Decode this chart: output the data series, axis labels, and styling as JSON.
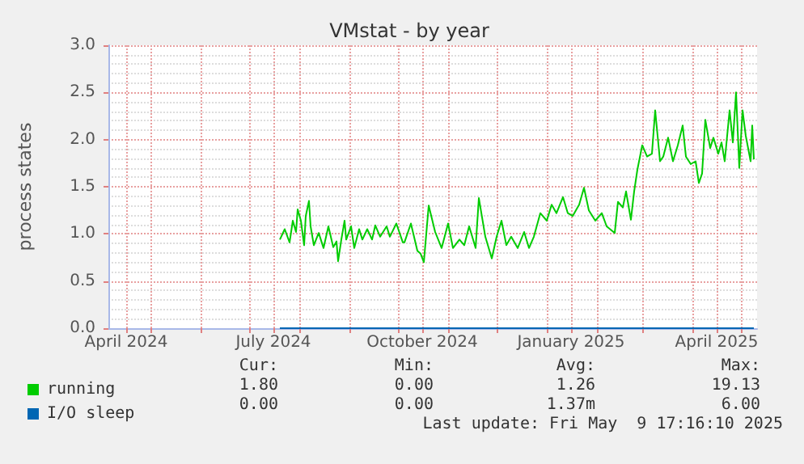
{
  "chart_data": {
    "type": "line",
    "title": "VMstat - by year",
    "ylabel": "process states",
    "xlim": [
      "2024-04-05",
      "2025-05-11"
    ],
    "xticks": [
      {
        "value": "2024-04-16",
        "label": "April 2024"
      },
      {
        "value": "2024-05-01",
        "label": null
      },
      {
        "value": "2024-06-01",
        "label": null
      },
      {
        "value": "2024-07-01",
        "label": null
      },
      {
        "value": "2024-07-16",
        "label": "July 2024"
      },
      {
        "value": "2024-08-01",
        "label": null
      },
      {
        "value": "2024-09-01",
        "label": null
      },
      {
        "value": "2024-10-01",
        "label": null
      },
      {
        "value": "2024-10-16",
        "label": "October 2024"
      },
      {
        "value": "2024-11-01",
        "label": null
      },
      {
        "value": "2024-12-01",
        "label": null
      },
      {
        "value": "2025-01-01",
        "label": null
      },
      {
        "value": "2025-01-16",
        "label": "January 2025"
      },
      {
        "value": "2025-02-01",
        "label": null
      },
      {
        "value": "2025-03-01",
        "label": null
      },
      {
        "value": "2025-04-01",
        "label": null
      },
      {
        "value": "2025-04-16",
        "label": "April 2025"
      },
      {
        "value": "2025-05-01",
        "label": null
      }
    ],
    "ylim": [
      0,
      3
    ],
    "yticks": [
      {
        "value": 0,
        "label": "0.0"
      },
      {
        "value": 0.5,
        "label": "0.5"
      },
      {
        "value": 1,
        "label": "1.0"
      },
      {
        "value": 1.5,
        "label": "1.5"
      },
      {
        "value": 2,
        "label": "2.0"
      },
      {
        "value": 2.5,
        "label": "2.5"
      },
      {
        "value": 3,
        "label": "3.0"
      }
    ],
    "grid": true,
    "legend": "bottom left",
    "marker": "none",
    "line_style": "solid",
    "series": [
      {
        "name": "running",
        "color": "#00cc00",
        "x": [
          "2024-07-20",
          "2024-07-23",
          "2024-07-26",
          "2024-07-28",
          "2024-07-30",
          "2024-07-31",
          "2024-08-02",
          "2024-08-04",
          "2024-08-05",
          "2024-08-07",
          "2024-08-08",
          "2024-08-10",
          "2024-08-13",
          "2024-08-16",
          "2024-08-19",
          "2024-08-22",
          "2024-08-24",
          "2024-08-25",
          "2024-08-27",
          "2024-08-29",
          "2024-08-30",
          "2024-09-02",
          "2024-09-04",
          "2024-09-07",
          "2024-09-09",
          "2024-09-12",
          "2024-09-15",
          "2024-09-17",
          "2024-09-20",
          "2024-09-24",
          "2024-09-26",
          "2024-09-30",
          "2024-10-04",
          "2024-10-05",
          "2024-10-09",
          "2024-10-13",
          "2024-10-15",
          "2024-10-17",
          "2024-10-20",
          "2024-10-24",
          "2024-10-28",
          "2024-11-01",
          "2024-11-04",
          "2024-11-08",
          "2024-11-11",
          "2024-11-14",
          "2024-11-18",
          "2024-11-20",
          "2024-11-24",
          "2024-11-28",
          "2024-12-01",
          "2024-12-04",
          "2024-12-07",
          "2024-12-10",
          "2024-12-14",
          "2024-12-18",
          "2024-12-21",
          "2024-12-24",
          "2024-12-28",
          "2025-01-01",
          "2025-01-04",
          "2025-01-07",
          "2025-01-11",
          "2025-01-14",
          "2025-01-17",
          "2025-01-21",
          "2025-01-24",
          "2025-01-27",
          "2025-01-31",
          "2025-02-04",
          "2025-02-07",
          "2025-02-12",
          "2025-02-14",
          "2025-02-17",
          "2025-02-19",
          "2025-02-22",
          "2025-02-24",
          "2025-02-26",
          "2025-03-01",
          "2025-03-04",
          "2025-03-07",
          "2025-03-09",
          "2025-03-12",
          "2025-03-14",
          "2025-03-17",
          "2025-03-20",
          "2025-03-23",
          "2025-03-26",
          "2025-03-28",
          "2025-03-31",
          "2025-04-03",
          "2025-04-05",
          "2025-04-07",
          "2025-04-09",
          "2025-04-12",
          "2025-04-14",
          "2025-04-17",
          "2025-04-19",
          "2025-04-21",
          "2025-04-24",
          "2025-04-26",
          "2025-04-28",
          "2025-04-30",
          "2025-05-02",
          "2025-05-04",
          "2025-05-07",
          "2025-05-08",
          "2025-05-09"
        ],
        "values": [
          0.94,
          1.05,
          0.91,
          1.14,
          1.02,
          1.26,
          1.14,
          0.88,
          1.19,
          1.35,
          1.08,
          0.88,
          1.01,
          0.85,
          1.08,
          0.86,
          0.92,
          0.71,
          0.94,
          1.14,
          0.94,
          1.08,
          0.85,
          1.05,
          0.94,
          1.05,
          0.94,
          1.09,
          0.97,
          1.08,
          0.97,
          1.11,
          0.91,
          0.91,
          1.11,
          0.82,
          0.79,
          0.7,
          1.3,
          1.02,
          0.85,
          1.11,
          0.85,
          0.94,
          0.88,
          1.08,
          0.85,
          1.38,
          0.97,
          0.74,
          0.97,
          1.14,
          0.88,
          0.97,
          0.85,
          1.02,
          0.85,
          0.97,
          1.22,
          1.14,
          1.31,
          1.22,
          1.39,
          1.22,
          1.19,
          1.31,
          1.49,
          1.25,
          1.14,
          1.22,
          1.08,
          1.01,
          1.34,
          1.28,
          1.45,
          1.15,
          1.45,
          1.68,
          1.94,
          1.82,
          1.85,
          2.31,
          1.77,
          1.82,
          2.02,
          1.77,
          1.94,
          2.15,
          1.82,
          1.74,
          1.77,
          1.54,
          1.64,
          2.21,
          1.91,
          2.02,
          1.85,
          1.97,
          1.77,
          2.31,
          1.97,
          2.5,
          1.7,
          2.31,
          2.04,
          1.77,
          2.15,
          1.79
        ]
      },
      {
        "name": "I/O sleep",
        "color": "#0066b3",
        "x": [
          "2024-07-20",
          "2025-05-09"
        ],
        "values": [
          0,
          0
        ]
      }
    ],
    "annotations": [
      "Cur:",
      "Min:",
      "Avg:",
      "Max:",
      "1.80",
      "0.00",
      "1.26",
      "19.13",
      "0.00",
      "0.00",
      "1.37m",
      "6.00",
      "Last update: Fri May  9 17:16:10 2025"
    ]
  }
}
